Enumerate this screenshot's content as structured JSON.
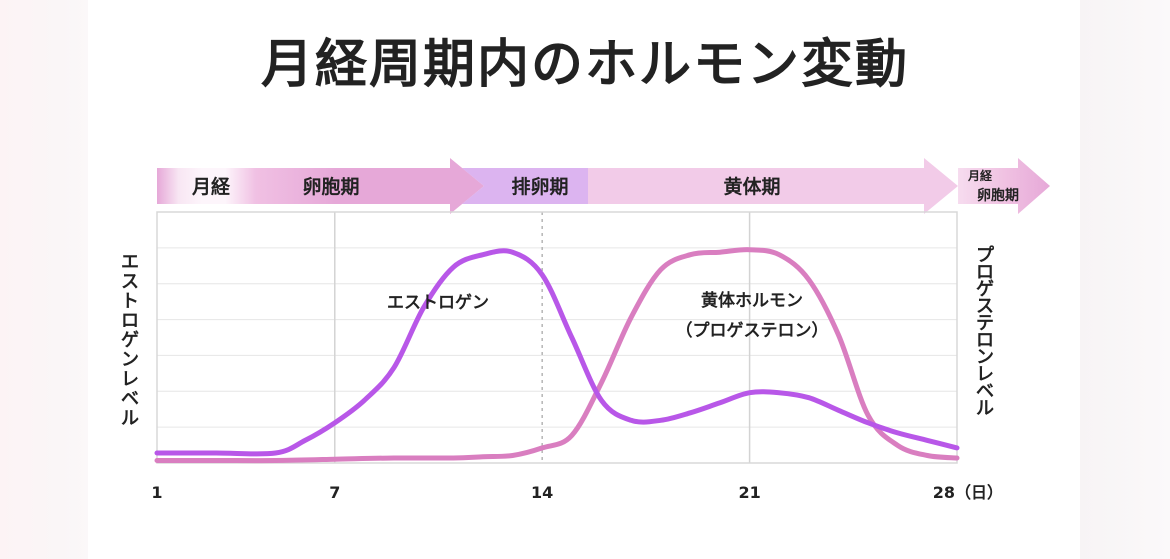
{
  "title": "月経周期内のホルモン変動",
  "phases": [
    {
      "label": "月経"
    },
    {
      "label": "卵胞期"
    },
    {
      "label": "排卵期"
    },
    {
      "label": "黄体期"
    }
  ],
  "next_cycle": {
    "label_top": "月経",
    "label_bottom": "卵胞期"
  },
  "colors": {
    "estrogen": "#b857e8",
    "progesterone": "#d97ec0",
    "phase_main": "#e6a8d8",
    "phase_ovulation": "#dcb4f0",
    "phase_luteal": "#f2cbe8",
    "grid": "#dddddd"
  },
  "chart_data": {
    "type": "line",
    "title": "月経周期内のホルモン変動",
    "xlabel": "",
    "ylabel_left": "エストロゲンレベル",
    "ylabel_right": "プロゲステロンレベル",
    "xlim": [
      1,
      28
    ],
    "ylim": [
      0,
      100
    ],
    "x_ticks": [
      "1",
      "7",
      "14",
      "21",
      "28"
    ],
    "x_unit": "（日）",
    "grid": true,
    "series": [
      {
        "name": "エストロゲン",
        "x": [
          1,
          3,
          5,
          6,
          7,
          8,
          9,
          10,
          11,
          12,
          13,
          14,
          15,
          16,
          17,
          18,
          19,
          20,
          21,
          22,
          23,
          24,
          25,
          26,
          27,
          28
        ],
        "y": [
          4,
          4,
          4,
          9,
          16,
          25,
          38,
          62,
          78,
          83,
          84,
          75,
          50,
          25,
          17,
          17,
          20,
          24,
          28,
          28,
          26,
          21,
          16,
          12,
          9,
          6
        ]
      },
      {
        "name": "黄体ホルモン（プロゲステロン）",
        "x": [
          1,
          3,
          5,
          7,
          9,
          11,
          12,
          13,
          14,
          15,
          16,
          17,
          18,
          19,
          20,
          21,
          22,
          23,
          24,
          25,
          26,
          27,
          28
        ],
        "y": [
          1,
          1,
          1,
          1.5,
          2,
          2,
          2.5,
          3,
          6,
          11,
          32,
          58,
          77,
          83,
          84,
          85,
          83,
          73,
          51,
          19,
          7,
          3,
          2
        ]
      }
    ]
  }
}
